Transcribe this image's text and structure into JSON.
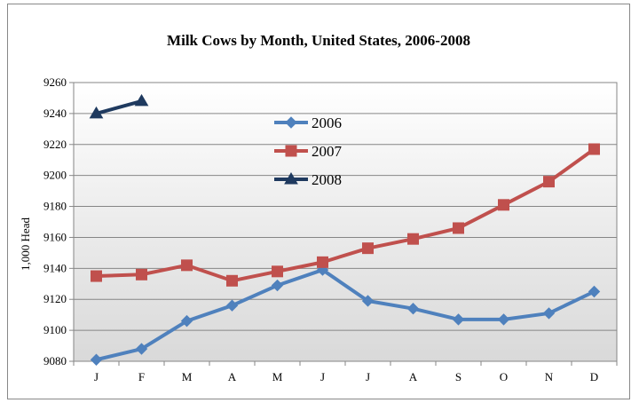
{
  "chart_data": {
    "type": "line",
    "title": "Milk Cows by Month, United States, 2006-2008",
    "xlabel": "",
    "ylabel": "1,000 Head",
    "categories": [
      "J",
      "F",
      "M",
      "A",
      "M",
      "J",
      "J",
      "A",
      "S",
      "O",
      "N",
      "D"
    ],
    "ylim": [
      9080,
      9260
    ],
    "yticks": [
      9080,
      9100,
      9120,
      9140,
      9160,
      9180,
      9200,
      9220,
      9240,
      9260
    ],
    "grid": true,
    "legend_position": "inside-top-center",
    "series": [
      {
        "name": "2006",
        "color": "#4F81BD",
        "marker": "diamond",
        "values": [
          9081,
          9088,
          9106,
          9116,
          9129,
          9139,
          9119,
          9114,
          9107,
          9107,
          9111,
          9125
        ]
      },
      {
        "name": "2007",
        "color": "#C0504D",
        "marker": "square",
        "values": [
          9135,
          9136,
          9142,
          9132,
          9138,
          9144,
          9153,
          9159,
          9166,
          9181,
          9196,
          9217
        ]
      },
      {
        "name": "2008",
        "color": "#1F3A5F",
        "marker": "triangle",
        "values": [
          9240,
          9248,
          null,
          null,
          null,
          null,
          null,
          null,
          null,
          null,
          null,
          null
        ]
      }
    ]
  }
}
